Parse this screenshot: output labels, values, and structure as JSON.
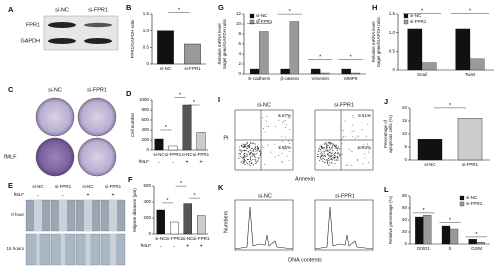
{
  "chart_data": [
    {
      "type": "bar",
      "panel": "B",
      "ylabel": "FPR1/GAPDH ratio",
      "categories": [
        "si-NC",
        "si-FPR1"
      ],
      "values": [
        1.0,
        0.6
      ],
      "colors": [
        "#111111",
        "#9a9a9a"
      ],
      "ylim": [
        0,
        1.5
      ],
      "yticks": [
        0,
        0.5,
        {
          "value": 1,
          "label": "1.0"
        },
        1.5
      ],
      "annotations": [
        "*"
      ]
    },
    {
      "type": "bar",
      "panel": "D",
      "ylabel": "Cell number",
      "categories": [
        "si-NC",
        "si-FPR1",
        "si-NC",
        "si-FPR1"
      ],
      "values": [
        220,
        80,
        900,
        350
      ],
      "colors": [
        "#111111",
        "#ffffff",
        "#555555",
        "#cccccc"
      ],
      "ylim": [
        0,
        1000
      ],
      "yticks": [
        0,
        200,
        400,
        600,
        800,
        1000
      ],
      "row_label": "fMLF",
      "row_values": [
        "-",
        "-",
        "+",
        "+"
      ],
      "annotations": [
        "*",
        "*",
        "*"
      ]
    },
    {
      "type": "bar",
      "panel": "F",
      "ylabel": "Migrate distance (μm)",
      "categories": [
        "si-NC",
        "si-FPR1",
        "si-NC",
        "si-FPR1"
      ],
      "values": [
        300,
        150,
        380,
        230
      ],
      "colors": [
        "#111111",
        "#ffffff",
        "#555555",
        "#cccccc"
      ],
      "ylim": [
        0,
        600
      ],
      "yticks": [
        0,
        200,
        400,
        600
      ],
      "row_label": "fMLF",
      "row_values": [
        "-",
        "-",
        "+",
        "+"
      ],
      "annotations": [
        "*",
        "*",
        "*"
      ]
    },
    {
      "type": "bar",
      "panel": "G",
      "ylabel": [
        "Relative mRNA level",
        "target gene/GAPDH ratio"
      ],
      "categories": [
        "E-cadherin",
        "β-catenin",
        "Vimentin",
        "MMP9"
      ],
      "series": [
        {
          "name": "si-NC",
          "color": "#111111",
          "values": [
            1,
            1,
            1,
            1
          ]
        },
        {
          "name": "si-FPR1",
          "color": "#9a9a9a",
          "values": [
            8.5,
            10.5,
            0.2,
            0.2
          ]
        }
      ],
      "ylim": [
        0,
        12
      ],
      "yticks": [
        0,
        2,
        4,
        6,
        8,
        10,
        12
      ],
      "annotations": [
        "*",
        "*",
        "*",
        "*"
      ]
    },
    {
      "type": "bar",
      "panel": "H",
      "ylabel": [
        "Relative mRNA level",
        "target gene/GAPDH ratio"
      ],
      "categories": [
        "Snail",
        "Twist"
      ],
      "series": [
        {
          "name": "si-NC",
          "color": "#111111",
          "values": [
            1.1,
            1.1
          ]
        },
        {
          "name": "si-FPR1",
          "color": "#9a9a9a",
          "values": [
            0.2,
            0.3
          ]
        }
      ],
      "ylim": [
        0,
        1.5
      ],
      "yticks": [
        0,
        0.5,
        {
          "value": 1,
          "label": "1.0"
        },
        1.5
      ],
      "annotations": [
        "*",
        "*"
      ]
    },
    {
      "type": "bar",
      "panel": "J",
      "ylabel": [
        "Percentage of",
        "apoptosis cells (%)"
      ],
      "categories": [
        "si-NC",
        "si-FPR1"
      ],
      "values": [
        8,
        16
      ],
      "colors": [
        "#111111",
        "#cccccc"
      ],
      "ylim": [
        0,
        20
      ],
      "yticks": [
        0,
        5,
        10,
        15,
        20
      ],
      "annotations": [
        "*"
      ]
    },
    {
      "type": "bar",
      "panel": "L",
      "ylabel": "Relative percentage (%)",
      "categories": [
        "G0/G1",
        "S",
        "G2/M"
      ],
      "series": [
        {
          "name": "si-NC",
          "color": "#111111",
          "values": [
            45,
            30,
            8
          ]
        },
        {
          "name": "si-FPR1",
          "color": "#9a9a9a",
          "values": [
            48,
            25,
            3
          ]
        }
      ],
      "ylim": [
        0,
        80
      ],
      "yticks": [
        0,
        20,
        40,
        60,
        80
      ],
      "annotations": [
        "*",
        "*",
        "*"
      ]
    }
  ],
  "panels": {
    "A": {
      "letter": "A",
      "columns": [
        "si-NC",
        "si-FPR1"
      ],
      "rows": [
        "FPR1",
        "GAPDH"
      ]
    },
    "C": {
      "letter": "C",
      "columns": [
        "si-NC",
        "si-FPR1"
      ],
      "row": "fMLF"
    },
    "E": {
      "letter": "E",
      "columns": [
        "si-NC",
        "si-FPR1",
        "si-NC",
        "si-FPR1"
      ],
      "treatment": "fMLF",
      "signs": [
        "-",
        "-",
        "+",
        "+"
      ],
      "rows": [
        "0 hour",
        "16 hours"
      ]
    },
    "I": {
      "letter": "I",
      "plots": [
        {
          "title": "si-NC",
          "upper": "6.57%",
          "lower": "3.86%"
        },
        {
          "title": "si-FPR1",
          "upper": "8.61%",
          "lower": "5.93%"
        }
      ],
      "ylabel": "PI",
      "xlabel": "Annexin"
    },
    "K": {
      "letter": "K",
      "plots": [
        "si-NC",
        "si-FPR1"
      ],
      "ylabel": "Numbers",
      "xlabel": "DNA contents"
    }
  }
}
